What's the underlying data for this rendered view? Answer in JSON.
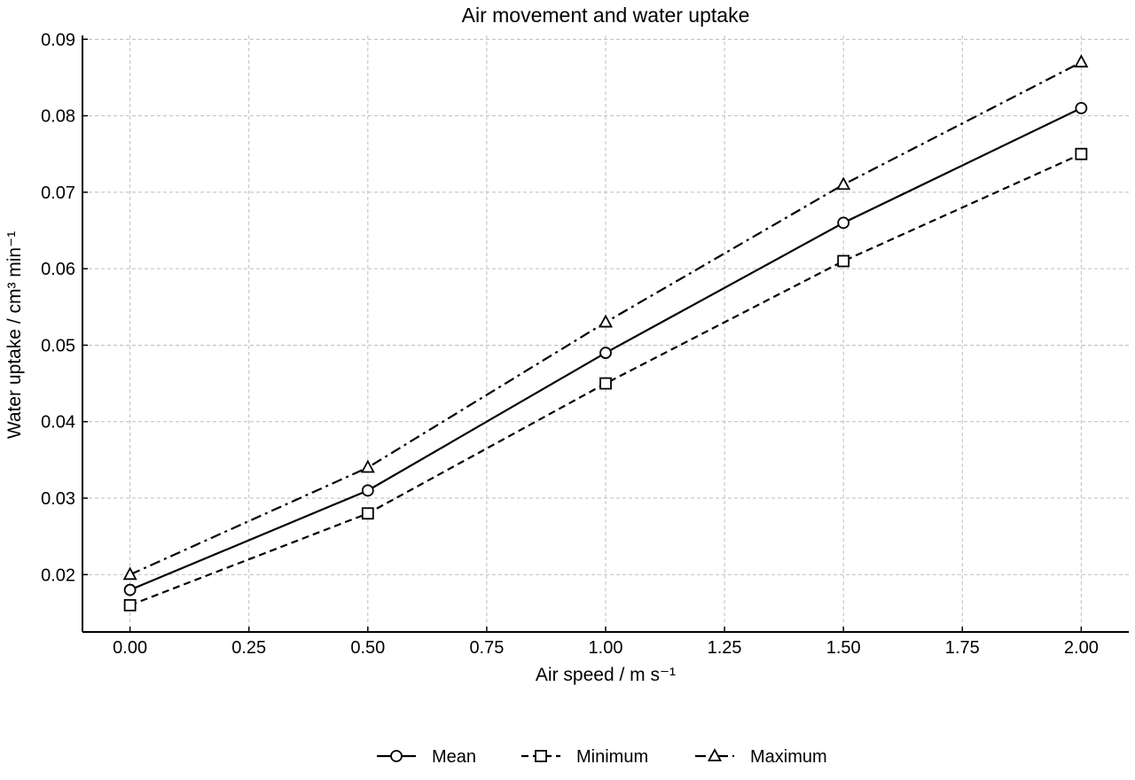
{
  "chart_data": {
    "type": "line",
    "title": "Air movement and water uptake",
    "xlabel": "Air speed / m s⁻¹",
    "ylabel": "Water uptake / cm³ min⁻¹",
    "x": [
      0.0,
      0.5,
      1.0,
      1.5,
      2.0
    ],
    "xlim": [
      -0.1,
      2.1
    ],
    "ylim": [
      0.0125,
      0.0905
    ],
    "xticks": [
      0.0,
      0.25,
      0.5,
      0.75,
      1.0,
      1.25,
      1.5,
      1.75,
      2.0
    ],
    "xtick_labels": [
      "0.00",
      "0.25",
      "0.50",
      "0.75",
      "1.00",
      "1.25",
      "1.50",
      "1.75",
      "2.00"
    ],
    "yticks": [
      0.02,
      0.03,
      0.04,
      0.05,
      0.06,
      0.07,
      0.08,
      0.09
    ],
    "ytick_labels": [
      "0.02",
      "0.03",
      "0.04",
      "0.05",
      "0.06",
      "0.07",
      "0.08",
      "0.09"
    ],
    "grid": true,
    "legend_position": "bottom-center",
    "series": [
      {
        "name": "Mean",
        "values": [
          0.018,
          0.031,
          0.049,
          0.066,
          0.081
        ],
        "marker": "circle",
        "line_style": "solid",
        "color": "#000000"
      },
      {
        "name": "Minimum",
        "values": [
          0.016,
          0.028,
          0.045,
          0.061,
          0.075
        ],
        "marker": "square",
        "line_style": "dashed",
        "color": "#000000"
      },
      {
        "name": "Maximum",
        "values": [
          0.02,
          0.034,
          0.053,
          0.071,
          0.087
        ],
        "marker": "triangle",
        "line_style": "dashdot",
        "color": "#000000"
      }
    ]
  }
}
